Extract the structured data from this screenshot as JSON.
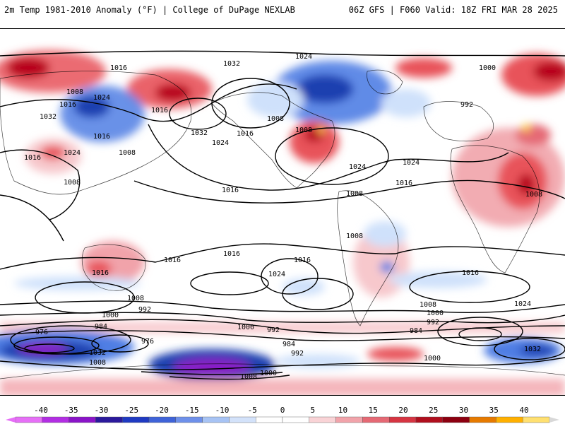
{
  "header": {
    "left_title": "2m Temp 1981-2010 Anomaly (°F) | College of DuPage NEXLAB",
    "right_title": "06Z GFS | F060 Valid: 18Z FRI MAR 28 2025"
  },
  "colors": {
    "background": "#ffffff",
    "frame": "#000000",
    "contour": "#000000",
    "warm_low": "#f7c8cc",
    "warm_mid": "#e8525a",
    "warm_high": "#b8001a",
    "hot": "#ffd24a",
    "cool_low": "#cfe1fb",
    "cool_mid": "#4f7ee4",
    "cool_high": "#1e3fb0",
    "cold": "#8a1ec8"
  },
  "colorbar": {
    "ticks": [
      "-40",
      "-35",
      "-30",
      "-25",
      "-20",
      "-15",
      "-10",
      "-5",
      "0",
      "5",
      "10",
      "15",
      "20",
      "25",
      "30",
      "35",
      "40"
    ],
    "segment_colors": [
      "#e66ff7",
      "#b22ee3",
      "#8a14c8",
      "#2b1a9c",
      "#1f3ac2",
      "#3f63d8",
      "#6e90ea",
      "#a7c3f4",
      "#d3e2fa",
      "#ffffff",
      "#ffffff",
      "#f9d3d6",
      "#f1a3aa",
      "#e56974",
      "#d63542",
      "#b00f1e",
      "#8c0010",
      "#e67a00",
      "#ffb000",
      "#ffe070"
    ]
  },
  "isobar_labels": [
    "1024",
    "1032",
    "1016",
    "1000",
    "992",
    "1008",
    "1016",
    "1024",
    "1032",
    "1016",
    "1008",
    "1024",
    "1016",
    "1008",
    "1016",
    "1016",
    "1024",
    "1008",
    "1032",
    "1008",
    "1024",
    "1024",
    "1016",
    "1008",
    "1016",
    "1008",
    "1016",
    "1016",
    "1016",
    "1016",
    "1024",
    "992",
    "1000",
    "1008",
    "992",
    "1000",
    "984",
    "984",
    "976",
    "984",
    "992",
    "1000",
    "1008",
    "976",
    "1008",
    "1032",
    "992",
    "1000",
    "1008",
    "1016",
    "1024",
    "1032",
    "1000",
    "1008"
  ]
}
